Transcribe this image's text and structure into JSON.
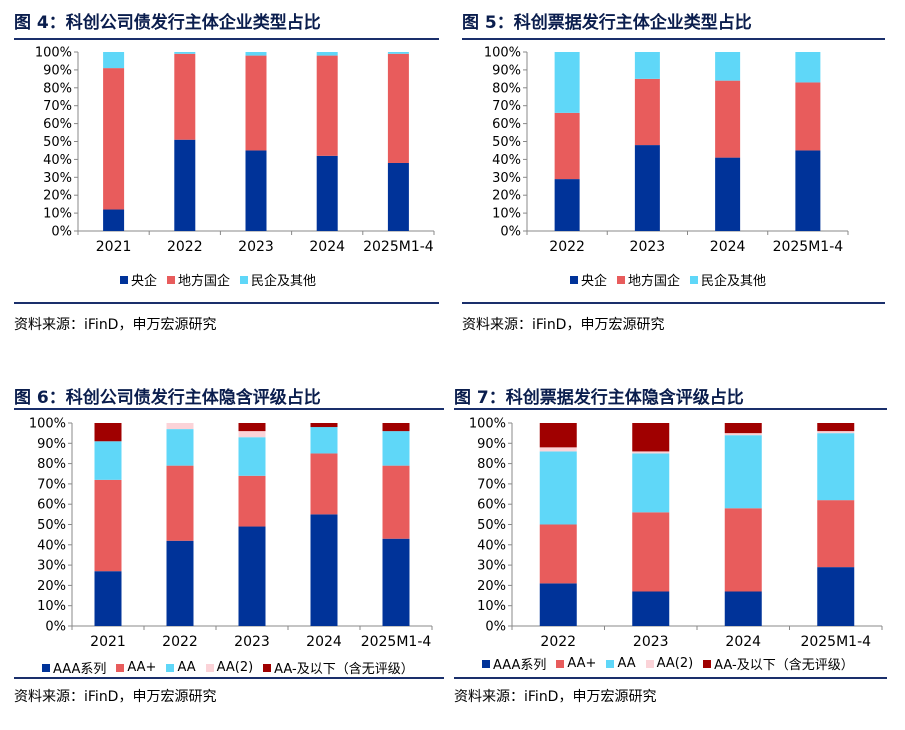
{
  "chart_data": [
    {
      "type": "bar",
      "stacked": true,
      "title": "图 4：科创公司债发行主体企业类型占比",
      "categories": [
        "2021",
        "2022",
        "2023",
        "2024",
        "2025M1-4"
      ],
      "series": [
        {
          "name": "央企",
          "color": "#003399",
          "values": [
            12,
            51,
            45,
            42,
            38
          ]
        },
        {
          "name": "地方国企",
          "color": "#e85c5c",
          "values": [
            79,
            48,
            53,
            56,
            61
          ]
        },
        {
          "name": "民企及其他",
          "color": "#5fd7f8",
          "values": [
            9,
            1,
            2,
            2,
            1
          ]
        }
      ],
      "ylim": [
        0,
        100
      ],
      "yticks": [
        "0%",
        "10%",
        "20%",
        "30%",
        "40%",
        "50%",
        "60%",
        "70%",
        "80%",
        "90%",
        "100%"
      ],
      "source": "资料来源：iFinD，申万宏源研究"
    },
    {
      "type": "bar",
      "stacked": true,
      "title": "图 5：科创票据发行主体企业类型占比",
      "categories": [
        "2022",
        "2023",
        "2024",
        "2025M1-4"
      ],
      "series": [
        {
          "name": "央企",
          "color": "#003399",
          "values": [
            29,
            48,
            41,
            45
          ]
        },
        {
          "name": "地方国企",
          "color": "#e85c5c",
          "values": [
            37,
            37,
            43,
            38
          ]
        },
        {
          "name": "民企及其他",
          "color": "#5fd7f8",
          "values": [
            34,
            15,
            16,
            17
          ]
        }
      ],
      "ylim": [
        0,
        100
      ],
      "yticks": [
        "0%",
        "10%",
        "20%",
        "30%",
        "40%",
        "50%",
        "60%",
        "70%",
        "80%",
        "90%",
        "100%"
      ],
      "source": "资料来源：iFinD，申万宏源研究"
    },
    {
      "type": "bar",
      "stacked": true,
      "title": "图 6：科创公司债发行主体隐含评级占比",
      "categories": [
        "2021",
        "2022",
        "2023",
        "2024",
        "2025M1-4"
      ],
      "series": [
        {
          "name": "AAA系列",
          "color": "#003399",
          "values": [
            27,
            42,
            49,
            55,
            43
          ]
        },
        {
          "name": "AA+",
          "color": "#e85c5c",
          "values": [
            45,
            37,
            25,
            30,
            36
          ]
        },
        {
          "name": "AA",
          "color": "#5fd7f8",
          "values": [
            19,
            18,
            19,
            13,
            17
          ]
        },
        {
          "name": "AA(2)",
          "color": "#fbd3d8",
          "values": [
            0,
            3,
            3,
            0,
            0
          ]
        },
        {
          "name": "AA-及以下（含无评级）",
          "color": "#a00000",
          "values": [
            9,
            0,
            4,
            2,
            4
          ]
        }
      ],
      "ylim": [
        0,
        100
      ],
      "yticks": [
        "0%",
        "10%",
        "20%",
        "30%",
        "40%",
        "50%",
        "60%",
        "70%",
        "80%",
        "90%",
        "100%"
      ],
      "source": "资料来源：iFinD，申万宏源研究"
    },
    {
      "type": "bar",
      "stacked": true,
      "title": "图 7：科创票据发行主体隐含评级占比",
      "categories": [
        "2022",
        "2023",
        "2024",
        "2025M1-4"
      ],
      "series": [
        {
          "name": "AAA系列",
          "color": "#003399",
          "values": [
            21,
            17,
            17,
            29
          ]
        },
        {
          "name": "AA+",
          "color": "#e85c5c",
          "values": [
            29,
            39,
            41,
            33
          ]
        },
        {
          "name": "AA",
          "color": "#5fd7f8",
          "values": [
            36,
            29,
            36,
            33
          ]
        },
        {
          "name": "AA(2)",
          "color": "#fbd3d8",
          "values": [
            2,
            1,
            1,
            1
          ]
        },
        {
          "name": "AA-及以下（含无评级）",
          "color": "#a00000",
          "values": [
            12,
            14,
            5,
            4
          ]
        }
      ],
      "ylim": [
        0,
        100
      ],
      "yticks": [
        "0%",
        "10%",
        "20%",
        "30%",
        "40%",
        "50%",
        "60%",
        "70%",
        "80%",
        "90%",
        "100%"
      ],
      "source": "资料来源：iFinD，申万宏源研究"
    }
  ]
}
